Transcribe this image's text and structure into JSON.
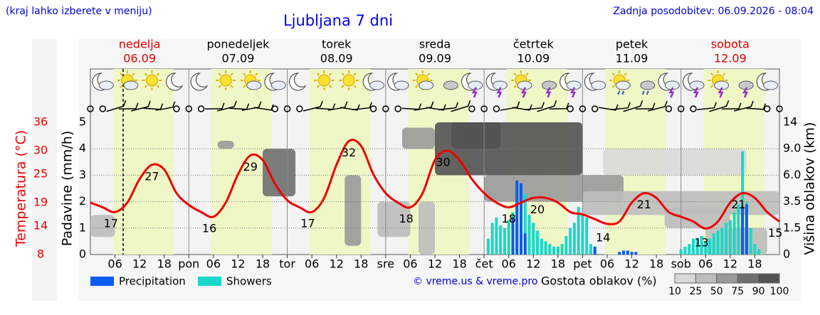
{
  "header": {
    "note": "(kraj lahko izberete v meniju)",
    "title": "Ljubljana 7 dni",
    "updated": "Zadnja posodobitev: 06.09.2026 - 08:04"
  },
  "chart_data": {
    "type": "weather",
    "temp_axis_label": "Temperatura (°C)",
    "y_label": "Padavine (mm/h)",
    "y2_label": "Višina oblakov (km)",
    "days": [
      {
        "name": "nedelja",
        "date": "06.09",
        "color": "#e00000"
      },
      {
        "name": "ponedeljek",
        "date": "07.09",
        "color": "#000000"
      },
      {
        "name": "torek",
        "date": "08.09",
        "color": "#000000"
      },
      {
        "name": "sreda",
        "date": "09.09",
        "color": "#000000"
      },
      {
        "name": "četrtek",
        "date": "10.09",
        "color": "#000000"
      },
      {
        "name": "petek",
        "date": "11.09",
        "color": "#000000"
      },
      {
        "name": "sobota",
        "date": "12.09",
        "color": "#e00000"
      }
    ],
    "xlim": [
      0,
      168
    ],
    "xticks": [
      {
        "value": 6,
        "label": "06"
      },
      {
        "value": 12,
        "label": "12"
      },
      {
        "value": 18,
        "label": "18"
      },
      {
        "value": 24,
        "label": "pon"
      },
      {
        "value": 30,
        "label": "06"
      },
      {
        "value": 36,
        "label": "12"
      },
      {
        "value": 42,
        "label": "18"
      },
      {
        "value": 48,
        "label": "tor"
      },
      {
        "value": 54,
        "label": "06"
      },
      {
        "value": 60,
        "label": "12"
      },
      {
        "value": 66,
        "label": "18"
      },
      {
        "value": 72,
        "label": "sre"
      },
      {
        "value": 78,
        "label": "06"
      },
      {
        "value": 84,
        "label": "12"
      },
      {
        "value": 90,
        "label": "18"
      },
      {
        "value": 96,
        "label": "čet"
      },
      {
        "value": 102,
        "label": "06"
      },
      {
        "value": 108,
        "label": "12"
      },
      {
        "value": 114,
        "label": "18"
      },
      {
        "value": 120,
        "label": "pet"
      },
      {
        "value": 126,
        "label": "06"
      },
      {
        "value": 132,
        "label": "12"
      },
      {
        "value": 138,
        "label": "18"
      },
      {
        "value": 144,
        "label": "sob"
      },
      {
        "value": 150,
        "label": "06"
      },
      {
        "value": 156,
        "label": "12"
      },
      {
        "value": 162,
        "label": "18"
      }
    ],
    "ylim": [
      0,
      5
    ],
    "yticks": [
      0,
      1,
      2,
      3,
      4,
      5
    ],
    "temp_lim": [
      8,
      36
    ],
    "temp_ticks": [
      8,
      14,
      19,
      25,
      30,
      36
    ],
    "y2lim": [
      0,
      14
    ],
    "y2ticks": [
      0,
      1.5,
      3.5,
      {
        "value": 6,
        "label": "6.0"
      },
      {
        "value": 9,
        "label": "9.0"
      },
      14
    ],
    "grid": true,
    "temperature": {
      "color": "#ee0000",
      "hours": [
        0,
        3,
        6,
        9,
        12,
        15,
        18,
        21,
        24,
        27,
        30,
        33,
        36,
        39,
        42,
        45,
        48,
        51,
        54,
        57,
        60,
        63,
        66,
        69,
        72,
        75,
        78,
        81,
        84,
        87,
        90,
        93,
        96,
        99,
        102,
        105,
        108,
        111,
        114,
        117,
        120,
        123,
        126,
        129,
        132,
        135,
        138,
        141,
        144,
        147,
        150,
        153,
        156,
        159,
        162,
        165,
        168
      ],
      "values": [
        19,
        18,
        17,
        19,
        24,
        27,
        26,
        21,
        18.5,
        17,
        16,
        19,
        25,
        29,
        28,
        23,
        19.5,
        18,
        17,
        20,
        27,
        32,
        31,
        25,
        21,
        19,
        18,
        21,
        28,
        30,
        28,
        24,
        21,
        19,
        18,
        19,
        20,
        20,
        19,
        17,
        16.5,
        15.5,
        14.5,
        15,
        19,
        21,
        20,
        17,
        16,
        15,
        13.5,
        15,
        19,
        21,
        20,
        17,
        15
      ]
    },
    "temp_labels": [
      {
        "hour": 5,
        "value": 17
      },
      {
        "hour": 15,
        "value": 27
      },
      {
        "hour": 29,
        "value": 16
      },
      {
        "hour": 39,
        "value": 29
      },
      {
        "hour": 53,
        "value": 17
      },
      {
        "hour": 63,
        "value": 32
      },
      {
        "hour": 77,
        "value": 18
      },
      {
        "hour": 86,
        "value": 30
      },
      {
        "hour": 102,
        "value": 18
      },
      {
        "hour": 109,
        "value": 20
      },
      {
        "hour": 125,
        "value": 14
      },
      {
        "hour": 135,
        "value": 21
      },
      {
        "hour": 149,
        "value": 13
      },
      {
        "hour": 158,
        "value": 21
      },
      {
        "hour": 167,
        "value": 15
      }
    ],
    "series": [
      {
        "name": "Showers",
        "color": "#18d8c8",
        "hours": [
          97,
          98,
          99,
          100,
          101,
          102,
          103,
          104,
          105,
          106,
          107,
          108,
          109,
          110,
          111,
          112,
          113,
          114,
          115,
          116,
          117,
          118,
          119,
          120,
          121,
          122,
          144,
          145,
          146,
          147,
          148,
          149,
          150,
          151,
          152,
          153,
          154,
          155,
          156,
          157,
          158,
          159,
          160,
          161,
          162,
          163
        ],
        "values": [
          0.6,
          1.2,
          1.4,
          1.1,
          1.0,
          1.3,
          1.6,
          1.8,
          2.2,
          2.3,
          1.5,
          1.2,
          0.9,
          0.6,
          0.5,
          0.4,
          0.3,
          0.3,
          0.4,
          0.7,
          1.0,
          1.2,
          1.8,
          1.5,
          1.4,
          0.4,
          0.2,
          0.3,
          0.4,
          0.6,
          0.6,
          0.7,
          0.5,
          0.6,
          0.8,
          0.9,
          1.0,
          1.2,
          1.3,
          1.6,
          1.9,
          3.9,
          2.0,
          1.0,
          0.4,
          0.2
        ]
      },
      {
        "name": "Precipitation",
        "color": "#0a5cf0",
        "hours": [
          103,
          104,
          105,
          106,
          123,
          129,
          130,
          131,
          132,
          133,
          159,
          160
        ],
        "values": [
          1.4,
          2.8,
          2.7,
          0.8,
          0.3,
          0.1,
          0.15,
          0.15,
          0.1,
          0.1,
          1.8,
          1.9
        ]
      }
    ],
    "cloud_label": "Gostota oblakov (%)",
    "cloud_scale": {
      "ticks": [
        10,
        25,
        50,
        75,
        90,
        100
      ],
      "colors": [
        "#d9d9d9",
        "#bdbdbd",
        "#999999",
        "#6e6e6e",
        "#525252"
      ]
    },
    "cloud_cells": [
      {
        "hours": [
          0,
          6
        ],
        "km": [
          1,
          2.5
        ],
        "density": 25
      },
      {
        "hours": [
          31,
          35
        ],
        "km": [
          9,
          10.5
        ],
        "density": 50
      },
      {
        "hours": [
          42,
          50
        ],
        "km": [
          4,
          9
        ],
        "density": 75
      },
      {
        "hours": [
          62,
          66
        ],
        "km": [
          0.5,
          6
        ],
        "density": 50
      },
      {
        "hours": [
          70,
          78
        ],
        "km": [
          1,
          3.5
        ],
        "density": 25
      },
      {
        "hours": [
          76,
          84
        ],
        "km": [
          9,
          13
        ],
        "density": 50
      },
      {
        "hours": [
          80,
          84
        ],
        "km": [
          0,
          3.5
        ],
        "density": 25
      },
      {
        "hours": [
          84,
          120
        ],
        "km": [
          6,
          14
        ],
        "density": 90
      },
      {
        "hours": [
          88,
          100
        ],
        "km": [
          9,
          14
        ],
        "density": 100
      },
      {
        "hours": [
          96,
          130
        ],
        "km": [
          3.5,
          6
        ],
        "density": 50
      },
      {
        "hours": [
          120,
          168
        ],
        "km": [
          2.5,
          4.5
        ],
        "density": 25
      },
      {
        "hours": [
          125,
          160
        ],
        "km": [
          6,
          9
        ],
        "density": 10
      },
      {
        "hours": [
          140,
          156
        ],
        "km": [
          1.5,
          3
        ],
        "density": 25
      },
      {
        "hours": [
          150,
          165
        ],
        "km": [
          0,
          1.5
        ],
        "density": 25
      }
    ],
    "copyright": "© vreme.us & vreme.pro"
  }
}
